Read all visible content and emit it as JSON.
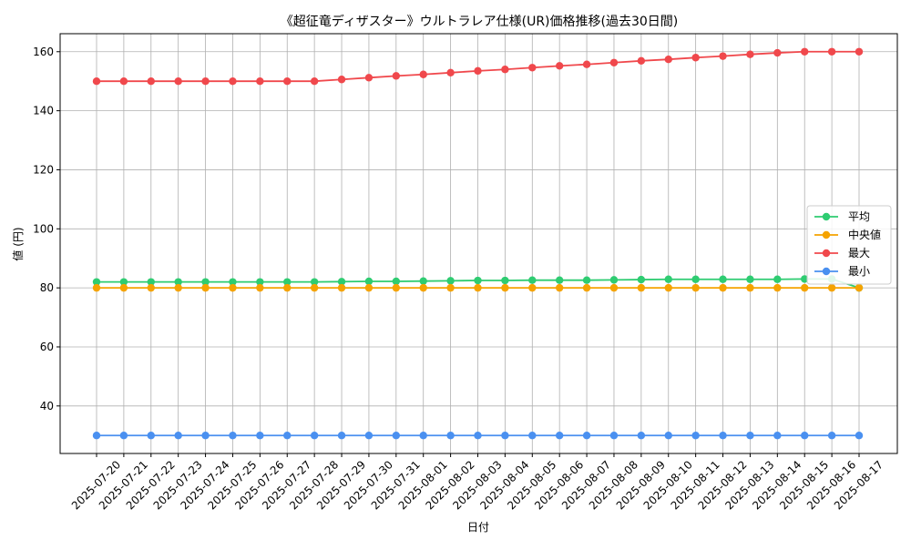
{
  "chart_data": {
    "type": "line",
    "title": "《超征竜ディザスター》ウルトラレア仕様(UR)価格推移(過去30日間)",
    "xlabel": "日付",
    "ylabel": "値 (円)",
    "ylim": [
      23.9,
      166.1
    ],
    "yticks": [
      40,
      60,
      80,
      100,
      120,
      140,
      160
    ],
    "grid": true,
    "legend_position": "center-right",
    "categories": [
      "2025-07-20",
      "2025-07-21",
      "2025-07-22",
      "2025-07-23",
      "2025-07-24",
      "2025-07-25",
      "2025-07-26",
      "2025-07-27",
      "2025-07-28",
      "2025-07-29",
      "2025-07-30",
      "2025-07-31",
      "2025-08-01",
      "2025-08-02",
      "2025-08-03",
      "2025-08-04",
      "2025-08-05",
      "2025-08-06",
      "2025-08-07",
      "2025-08-08",
      "2025-08-09",
      "2025-08-10",
      "2025-08-11",
      "2025-08-12",
      "2025-08-13",
      "2025-08-14",
      "2025-08-15",
      "2025-08-16",
      "2025-08-17"
    ],
    "series": [
      {
        "name": "平均",
        "color": "#2ecc71",
        "values": [
          82,
          82,
          82,
          82,
          82,
          82,
          82,
          82,
          82,
          82.1,
          82.2,
          82.2,
          82.3,
          82.4,
          82.5,
          82.5,
          82.6,
          82.6,
          82.6,
          82.7,
          82.8,
          82.9,
          82.9,
          82.9,
          82.9,
          82.9,
          83,
          83,
          80
        ]
      },
      {
        "name": "中央値",
        "color": "#f5a300",
        "values": [
          80,
          80,
          80,
          80,
          80,
          80,
          80,
          80,
          80,
          80,
          80,
          80,
          80,
          80,
          80,
          80,
          80,
          80,
          80,
          80,
          80,
          80,
          80,
          80,
          80,
          80,
          80,
          80,
          80
        ]
      },
      {
        "name": "最大",
        "color": "#f0484c",
        "values": [
          150,
          150,
          150,
          150,
          150,
          150,
          150,
          150,
          150,
          150.6,
          151.2,
          151.8,
          152.3,
          152.9,
          153.5,
          154,
          154.6,
          155.2,
          155.7,
          156.3,
          156.9,
          157.4,
          158,
          158.5,
          159.1,
          159.6,
          160,
          160,
          160
        ]
      },
      {
        "name": "最小",
        "color": "#4a90f0",
        "values": [
          30,
          30,
          30,
          30,
          30,
          30,
          30,
          30,
          30,
          30,
          30,
          30,
          30,
          30,
          30,
          30,
          30,
          30,
          30,
          30,
          30,
          30,
          30,
          30,
          30,
          30,
          30,
          30,
          30
        ]
      }
    ]
  }
}
